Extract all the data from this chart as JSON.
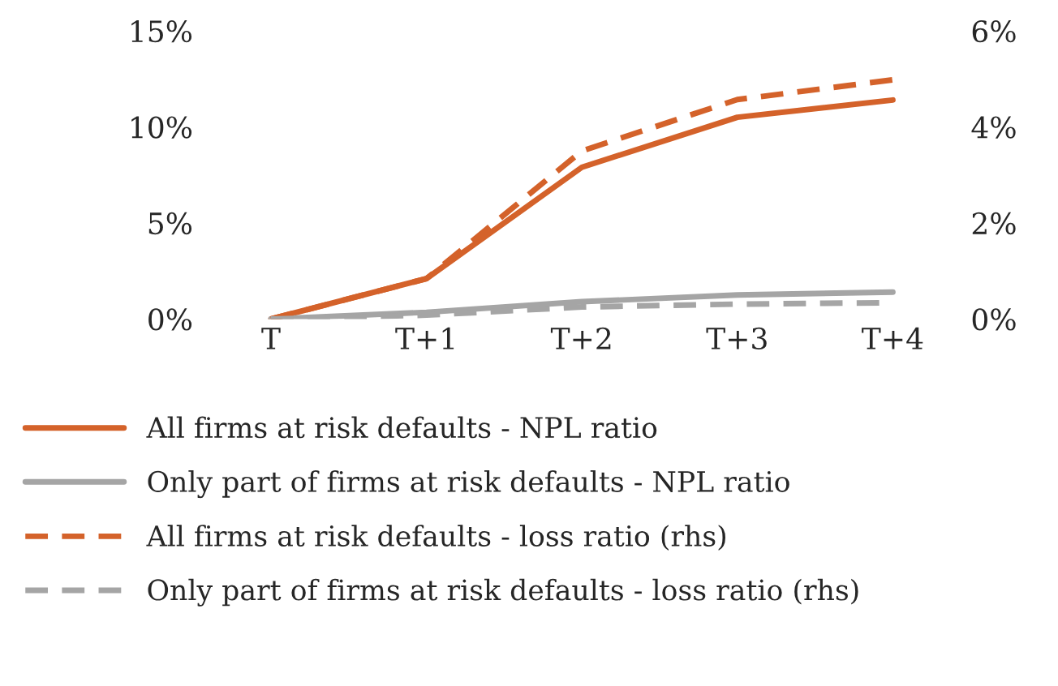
{
  "chart_data": {
    "type": "line",
    "categories": [
      "T",
      "T+1",
      "T+2",
      "T+3",
      "T+4"
    ],
    "series": [
      {
        "name": "All firms at risk defaults - NPL ratio",
        "color": "#d4622a",
        "values": [
          0,
          2.1,
          7.9,
          10.5,
          11.4
        ],
        "line_style": "solid"
      },
      {
        "name": "Only part of firms at risk defaults - NPL ratio",
        "color": "#a5a5a5",
        "values": [
          0,
          0.35,
          0.9,
          1.25,
          1.4
        ],
        "line_style": "solid"
      },
      {
        "name": "All firms at risk defaults - loss ratio (rhs)",
        "color": "#d4622a",
        "values": [
          0,
          0.84,
          3.5,
          4.57,
          4.98
        ],
        "line_style": "dashed",
        "axis": "y2"
      },
      {
        "name": "Only part of firms at risk defaults - loss ratio (rhs)",
        "color": "#a5a5a5",
        "values": [
          0,
          0.08,
          0.25,
          0.31,
          0.34
        ],
        "line_style": "dashed",
        "axis": "y2"
      }
    ],
    "ylim": [
      0,
      15
    ],
    "yticks": [
      {
        "value": 0,
        "label": "0%"
      },
      {
        "value": 5,
        "label": "5%"
      },
      {
        "value": 10,
        "label": "10%"
      },
      {
        "value": 15,
        "label": "15%"
      }
    ],
    "y2lim": [
      0,
      6
    ],
    "y2ticks": [
      {
        "value": 0,
        "label": "0%"
      },
      {
        "value": 2,
        "label": "2%"
      },
      {
        "value": 4,
        "label": "4%"
      },
      {
        "value": 6,
        "label": "6%"
      }
    ],
    "grid": false,
    "legend": "bottom",
    "marker": "none"
  }
}
